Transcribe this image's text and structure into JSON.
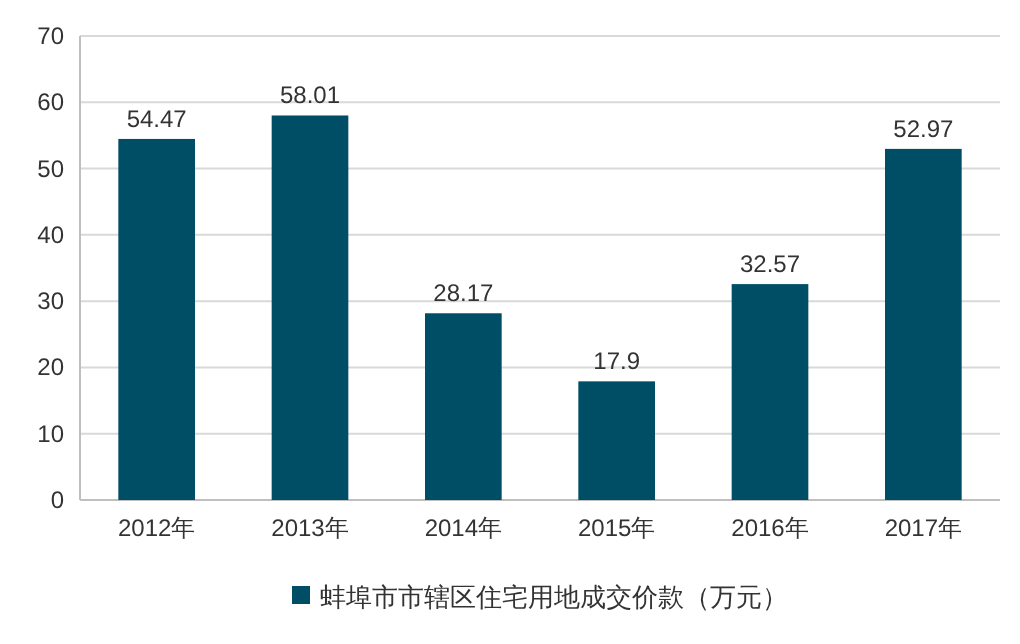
{
  "chart_data": {
    "type": "bar",
    "categories": [
      "2012年",
      "2013年",
      "2014年",
      "2015年",
      "2016年",
      "2017年"
    ],
    "series": [
      {
        "name": "蚌埠市市辖区住宅用地成交价款（万元）",
        "color": "#004d66",
        "values": [
          54.47,
          58.01,
          28.17,
          17.9,
          32.57,
          52.97
        ]
      }
    ],
    "ylim": [
      0,
      70
    ],
    "yticks": [
      0,
      10,
      20,
      30,
      40,
      50,
      60,
      70
    ],
    "grid": "y",
    "legend": "bottom",
    "data_labels": true
  }
}
